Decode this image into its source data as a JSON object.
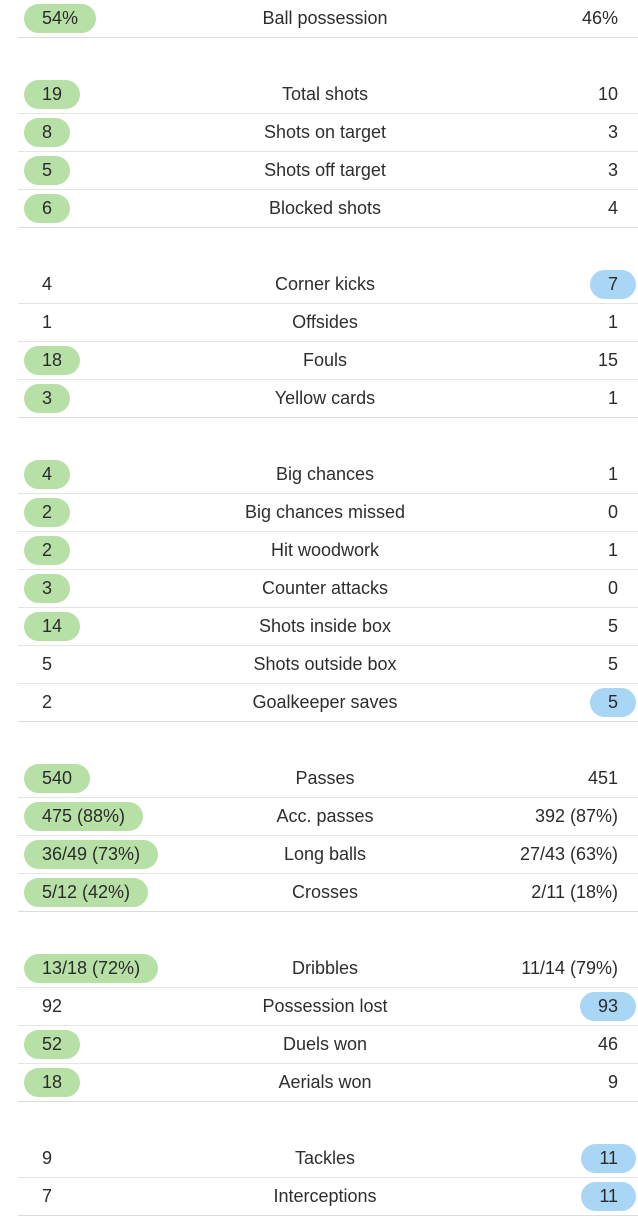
{
  "groups": [
    [
      {
        "label": "Ball possession",
        "home": "54%",
        "away": "46%",
        "highlight": "home"
      }
    ],
    [
      {
        "label": "Total shots",
        "home": "19",
        "away": "10",
        "highlight": "home"
      },
      {
        "label": "Shots on target",
        "home": "8",
        "away": "3",
        "highlight": "home"
      },
      {
        "label": "Shots off target",
        "home": "5",
        "away": "3",
        "highlight": "home"
      },
      {
        "label": "Blocked shots",
        "home": "6",
        "away": "4",
        "highlight": "home"
      }
    ],
    [
      {
        "label": "Corner kicks",
        "home": "4",
        "away": "7",
        "highlight": "away"
      },
      {
        "label": "Offsides",
        "home": "1",
        "away": "1",
        "highlight": "none"
      },
      {
        "label": "Fouls",
        "home": "18",
        "away": "15",
        "highlight": "home"
      },
      {
        "label": "Yellow cards",
        "home": "3",
        "away": "1",
        "highlight": "home"
      }
    ],
    [
      {
        "label": "Big chances",
        "home": "4",
        "away": "1",
        "highlight": "home"
      },
      {
        "label": "Big chances missed",
        "home": "2",
        "away": "0",
        "highlight": "home"
      },
      {
        "label": "Hit woodwork",
        "home": "2",
        "away": "1",
        "highlight": "home"
      },
      {
        "label": "Counter attacks",
        "home": "3",
        "away": "0",
        "highlight": "home"
      },
      {
        "label": "Shots inside box",
        "home": "14",
        "away": "5",
        "highlight": "home"
      },
      {
        "label": "Shots outside box",
        "home": "5",
        "away": "5",
        "highlight": "none"
      },
      {
        "label": "Goalkeeper saves",
        "home": "2",
        "away": "5",
        "highlight": "away"
      }
    ],
    [
      {
        "label": "Passes",
        "home": "540",
        "away": "451",
        "highlight": "home"
      },
      {
        "label": "Acc. passes",
        "home": "475 (88%)",
        "away": "392 (87%)",
        "highlight": "home"
      },
      {
        "label": "Long balls",
        "home": "36/49 (73%)",
        "away": "27/43 (63%)",
        "highlight": "home"
      },
      {
        "label": "Crosses",
        "home": "5/12 (42%)",
        "away": "2/11 (18%)",
        "highlight": "home"
      }
    ],
    [
      {
        "label": "Dribbles",
        "home": "13/18 (72%)",
        "away": "11/14 (79%)",
        "highlight": "home"
      },
      {
        "label": "Possession lost",
        "home": "92",
        "away": "93",
        "highlight": "away"
      },
      {
        "label": "Duels won",
        "home": "52",
        "away": "46",
        "highlight": "home"
      },
      {
        "label": "Aerials won",
        "home": "18",
        "away": "9",
        "highlight": "home"
      }
    ],
    [
      {
        "label": "Tackles",
        "home": "9",
        "away": "11",
        "highlight": "away"
      },
      {
        "label": "Interceptions",
        "home": "7",
        "away": "11",
        "highlight": "away"
      }
    ]
  ],
  "colors": {
    "home_highlight": "#b7e0a6",
    "away_highlight": "#a9d6f5"
  }
}
